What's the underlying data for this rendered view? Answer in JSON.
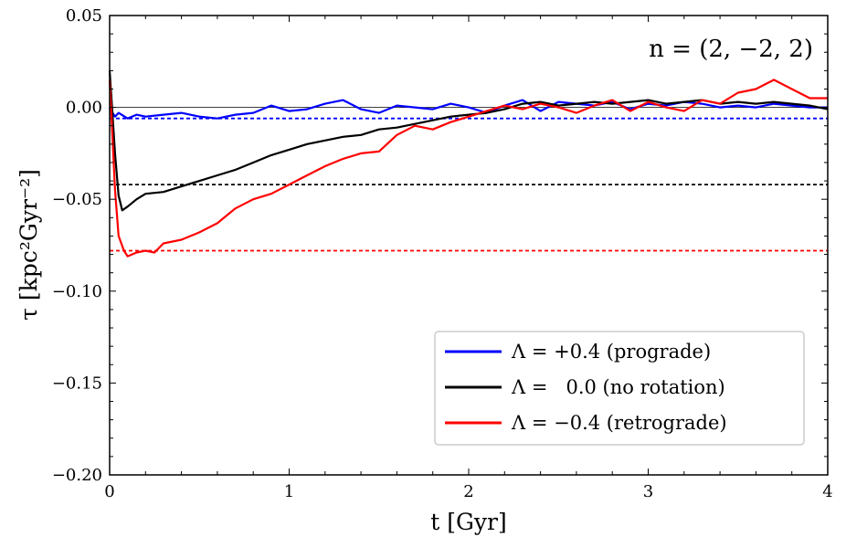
{
  "chart_data": {
    "type": "line",
    "xlabel": "t [Gyr]",
    "ylabel": "τ [kpc²Gyr⁻²]",
    "xlim": [
      0,
      4
    ],
    "ylim": [
      -0.2,
      0.05
    ],
    "xticks": [
      0,
      1,
      2,
      3,
      4
    ],
    "xtick_labels": [
      "0",
      "1",
      "2",
      "3",
      "4"
    ],
    "yticks": [
      -0.2,
      -0.15,
      -0.1,
      -0.05,
      0.0,
      0.05
    ],
    "ytick_labels": [
      "−0.20",
      "−0.15",
      "−0.10",
      "−0.05",
      "0.00",
      "0.05"
    ],
    "annotation": "n = (2, −2, 2)",
    "legend_position": "lower-right",
    "zero_line": 0.0,
    "series": [
      {
        "name": "Λ = +0.4 (prograde)",
        "color": "#0000ff",
        "mean": -0.006,
        "x": [
          0,
          0.01,
          0.03,
          0.05,
          0.1,
          0.15,
          0.2,
          0.3,
          0.4,
          0.5,
          0.6,
          0.7,
          0.8,
          0.9,
          1.0,
          1.1,
          1.2,
          1.3,
          1.4,
          1.5,
          1.6,
          1.7,
          1.8,
          1.9,
          2.0,
          2.1,
          2.2,
          2.3,
          2.4,
          2.5,
          2.6,
          2.7,
          2.8,
          2.9,
          3.0,
          3.1,
          3.2,
          3.3,
          3.4,
          3.5,
          3.6,
          3.7,
          3.8,
          3.9,
          4.0
        ],
        "y": [
          0.0,
          -0.002,
          -0.005,
          -0.003,
          -0.006,
          -0.004,
          -0.005,
          -0.004,
          -0.003,
          -0.005,
          -0.006,
          -0.004,
          -0.003,
          0.001,
          -0.002,
          -0.001,
          0.002,
          0.004,
          -0.001,
          -0.003,
          0.001,
          0.0,
          -0.001,
          0.002,
          0.0,
          -0.003,
          0.001,
          0.004,
          -0.002,
          0.003,
          0.002,
          0.001,
          0.003,
          -0.001,
          0.002,
          0.001,
          0.003,
          0.002,
          0.0,
          0.001,
          0.0,
          0.002,
          0.001,
          0.0,
          0.0
        ]
      },
      {
        "name": "Λ =   0.0 (no rotation)",
        "color": "#000000",
        "mean": -0.042,
        "x": [
          0,
          0.01,
          0.03,
          0.05,
          0.07,
          0.1,
          0.15,
          0.2,
          0.3,
          0.4,
          0.5,
          0.6,
          0.7,
          0.8,
          0.9,
          1.0,
          1.1,
          1.2,
          1.3,
          1.4,
          1.5,
          1.6,
          1.7,
          1.8,
          1.9,
          2.0,
          2.1,
          2.2,
          2.3,
          2.4,
          2.5,
          2.6,
          2.7,
          2.8,
          2.9,
          3.0,
          3.1,
          3.2,
          3.3,
          3.4,
          3.5,
          3.6,
          3.7,
          3.8,
          3.9,
          4.0
        ],
        "y": [
          0.02,
          0.005,
          -0.025,
          -0.048,
          -0.056,
          -0.054,
          -0.05,
          -0.047,
          -0.046,
          -0.043,
          -0.04,
          -0.037,
          -0.034,
          -0.03,
          -0.026,
          -0.023,
          -0.02,
          -0.018,
          -0.016,
          -0.015,
          -0.012,
          -0.011,
          -0.009,
          -0.007,
          -0.005,
          -0.004,
          -0.003,
          -0.001,
          0.002,
          0.003,
          0.001,
          0.002,
          0.003,
          0.002,
          0.003,
          0.004,
          0.002,
          0.003,
          0.004,
          0.002,
          0.003,
          0.002,
          0.003,
          0.002,
          0.001,
          -0.001
        ]
      },
      {
        "name": "Λ = −0.4 (retrograde)",
        "color": "#ff0000",
        "mean": -0.078,
        "x": [
          0,
          0.01,
          0.03,
          0.05,
          0.08,
          0.1,
          0.15,
          0.2,
          0.25,
          0.3,
          0.4,
          0.5,
          0.6,
          0.7,
          0.8,
          0.9,
          1.0,
          1.1,
          1.2,
          1.3,
          1.4,
          1.5,
          1.6,
          1.7,
          1.8,
          1.9,
          2.0,
          2.1,
          2.2,
          2.3,
          2.4,
          2.5,
          2.6,
          2.7,
          2.8,
          2.9,
          3.0,
          3.1,
          3.2,
          3.3,
          3.4,
          3.5,
          3.6,
          3.7,
          3.8,
          3.9,
          4.0
        ],
        "y": [
          0.015,
          -0.005,
          -0.045,
          -0.07,
          -0.078,
          -0.081,
          -0.079,
          -0.078,
          -0.079,
          -0.074,
          -0.072,
          -0.068,
          -0.063,
          -0.055,
          -0.05,
          -0.047,
          -0.042,
          -0.037,
          -0.032,
          -0.028,
          -0.025,
          -0.024,
          -0.015,
          -0.01,
          -0.012,
          -0.008,
          -0.005,
          -0.002,
          0.001,
          -0.001,
          0.002,
          0.0,
          -0.003,
          0.001,
          0.004,
          -0.002,
          0.003,
          0.0,
          -0.002,
          0.004,
          0.002,
          0.008,
          0.01,
          0.015,
          0.01,
          0.005,
          0.005
        ]
      }
    ]
  }
}
